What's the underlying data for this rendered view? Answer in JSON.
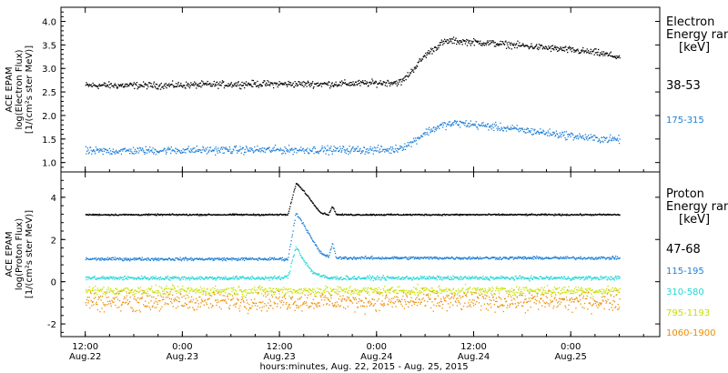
{
  "chart_data": [
    {
      "type": "scatter",
      "panel": "electron",
      "ylabel_lines": [
        "ACE EPAM",
        "log(Electron Flux)",
        "[1/(cm²s ster MeV)]"
      ],
      "ylim": [
        0.8,
        4.3
      ],
      "yticks": [
        1.0,
        1.5,
        2.0,
        2.5,
        3.0,
        3.5,
        4.0
      ],
      "ytick_labels": [
        "1.0",
        "1.5",
        "2.0",
        "2.5",
        "3.0",
        "3.5",
        "4.0"
      ],
      "legend_title_lines": [
        "Electron",
        "Energy ranges",
        "[keV]"
      ],
      "series": [
        {
          "name": "38-53",
          "color": "#000000",
          "noise": 0.06,
          "x": [
            0,
            10,
            20,
            30,
            36,
            39,
            40,
            42,
            44,
            45,
            50,
            55,
            60,
            63,
            66
          ],
          "values": [
            2.65,
            2.65,
            2.68,
            2.68,
            2.7,
            2.72,
            2.9,
            3.3,
            3.55,
            3.6,
            3.55,
            3.48,
            3.4,
            3.35,
            3.25
          ]
        },
        {
          "name": "175-315",
          "color": "#1e7fd6",
          "noise": 0.07,
          "x": [
            0,
            10,
            20,
            30,
            38,
            40,
            42,
            44,
            46,
            50,
            55,
            60,
            63,
            66
          ],
          "values": [
            1.25,
            1.27,
            1.28,
            1.28,
            1.28,
            1.4,
            1.65,
            1.8,
            1.85,
            1.78,
            1.68,
            1.58,
            1.52,
            1.5
          ]
        }
      ]
    },
    {
      "type": "scatter",
      "panel": "proton",
      "ylabel_lines": [
        "ACE EPAM",
        "log(Proton Flux)",
        "[1/(cm²s ster MeV)]"
      ],
      "ylim": [
        -2.6,
        5.2
      ],
      "yticks": [
        -2,
        0,
        2,
        4
      ],
      "ytick_labels": [
        "-2",
        "0",
        "2",
        "4"
      ],
      "legend_title_lines": [
        "Proton",
        "Energy ranges",
        "[keV]"
      ],
      "series": [
        {
          "name": "47-68",
          "color": "#000000",
          "noise": 0.03,
          "x": [
            0,
            24,
            25,
            26,
            27,
            28,
            29,
            30,
            30.5,
            31,
            40,
            66
          ],
          "values": [
            3.2,
            3.2,
            3.2,
            4.7,
            4.3,
            3.8,
            3.3,
            3.2,
            3.6,
            3.2,
            3.2,
            3.2
          ]
        },
        {
          "name": "115-195",
          "color": "#1e7fd6",
          "noise": 0.06,
          "x": [
            0,
            24,
            25,
            26,
            27,
            28,
            29,
            30,
            30.5,
            31,
            40,
            66
          ],
          "values": [
            1.1,
            1.1,
            1.1,
            3.3,
            2.7,
            2.0,
            1.4,
            1.2,
            1.8,
            1.15,
            1.15,
            1.15
          ]
        },
        {
          "name": "310-580",
          "color": "#22d6d6",
          "noise": 0.08,
          "x": [
            0,
            24,
            25,
            26,
            27,
            28,
            29,
            30,
            66
          ],
          "values": [
            0.2,
            0.2,
            0.25,
            1.7,
            1.0,
            0.5,
            0.3,
            0.2,
            0.2
          ]
        },
        {
          "name": "795-1193",
          "color": "#c8e000",
          "noise": 0.18,
          "x": [
            0,
            66
          ],
          "values": [
            -0.4,
            -0.4
          ]
        },
        {
          "name": "1060-1900",
          "color": "#ee8c00",
          "noise": 0.38,
          "x": [
            0,
            66
          ],
          "values": [
            -0.9,
            -0.9
          ]
        }
      ]
    }
  ],
  "x_axis": {
    "xlim": [
      -3,
      71
    ],
    "ticks": [
      {
        "x": 0,
        "time": "12:00",
        "date": "Aug.22"
      },
      {
        "x": 12,
        "time": "0:00",
        "date": "Aug.23"
      },
      {
        "x": 24,
        "time": "12:00",
        "date": "Aug.23"
      },
      {
        "x": 36,
        "time": "0:00",
        "date": "Aug.24"
      },
      {
        "x": 48,
        "time": "12:00",
        "date": "Aug.24"
      },
      {
        "x": 60,
        "time": "0:00",
        "date": "Aug.25"
      }
    ],
    "xlabel": "hours:minutes, Aug. 22, 2015 - Aug. 25, 2015"
  }
}
